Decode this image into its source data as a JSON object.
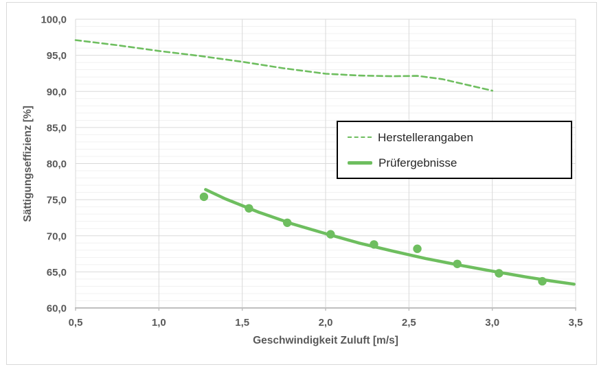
{
  "chart_data": {
    "type": "line",
    "title": "",
    "xlabel": "Geschwindigkeit Zuluft [m/s]",
    "ylabel": "Sättigungseffizienz [%]",
    "xlim": [
      0.5,
      3.5
    ],
    "ylim": [
      60,
      100
    ],
    "x_major_step": 0.5,
    "y_major_step": 5,
    "y_minor_step": 1,
    "grid": true,
    "legend_position": "inside-middle-right",
    "x_tick_labels": [
      "0,5",
      "1,0",
      "1,5",
      "2,0",
      "2,5",
      "3,0",
      "3,5"
    ],
    "y_tick_labels": [
      "100,0",
      "95,0",
      "90,0",
      "85,0",
      "80,0",
      "75,0",
      "70,0",
      "65,0",
      "60,0"
    ],
    "series": [
      {
        "name": "Herstellerangaben",
        "style": "dashed",
        "color": "#6ebe5f",
        "points": [
          [
            0.5,
            97.1
          ],
          [
            0.75,
            96.4
          ],
          [
            1.0,
            95.6
          ],
          [
            1.25,
            94.9
          ],
          [
            1.5,
            94.1
          ],
          [
            1.75,
            93.2
          ],
          [
            2.0,
            92.45
          ],
          [
            2.2,
            92.2
          ],
          [
            2.4,
            92.1
          ],
          [
            2.55,
            92.15
          ],
          [
            2.7,
            91.7
          ],
          [
            2.85,
            90.9
          ],
          [
            3.0,
            90.1
          ]
        ]
      },
      {
        "name": "Prüfergebnisse",
        "style": "solid-line-with-markers",
        "color": "#6ebe5f",
        "points": [
          [
            1.27,
            75.4
          ],
          [
            1.54,
            73.8
          ],
          [
            1.77,
            71.8
          ],
          [
            2.03,
            70.2
          ],
          [
            2.29,
            68.8
          ],
          [
            2.55,
            68.2
          ],
          [
            2.79,
            66.1
          ],
          [
            3.04,
            64.8
          ],
          [
            3.3,
            63.7
          ]
        ],
        "trend_points": [
          [
            1.28,
            76.4
          ],
          [
            1.4,
            75.1
          ],
          [
            1.6,
            73.25
          ],
          [
            1.8,
            71.65
          ],
          [
            2.0,
            70.3
          ],
          [
            2.2,
            69.0
          ],
          [
            2.4,
            67.9
          ],
          [
            2.6,
            66.85
          ],
          [
            2.8,
            65.95
          ],
          [
            3.0,
            65.1
          ],
          [
            3.2,
            64.3
          ],
          [
            3.35,
            63.75
          ],
          [
            3.49,
            63.3
          ]
        ]
      }
    ]
  },
  "styles": {
    "series_green": "#6ebe5f",
    "axis_text": "#595959",
    "grid_major": "#d9d9d9",
    "grid_minor": "#f1f1f1",
    "axis_line": "#bfbfbf",
    "legend_border": "#000000",
    "chart_border": "#d9d9d9",
    "background": "#ffffff"
  }
}
